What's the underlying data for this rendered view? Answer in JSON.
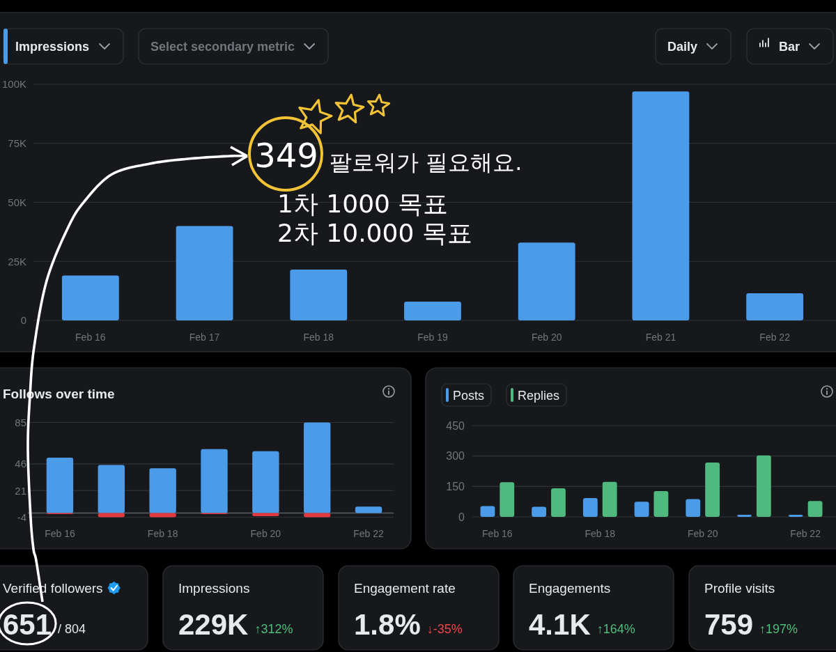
{
  "chart_data": [
    {
      "type": "bar",
      "categories": [
        "Feb 16",
        "Feb 17",
        "Feb 18",
        "Feb 19",
        "Feb 20",
        "Feb 21",
        "Feb 22"
      ],
      "series": [
        {
          "name": "Impressions",
          "color": "#4c9be8",
          "values": [
            19000,
            40000,
            21500,
            8000,
            33000,
            97000,
            11500
          ]
        }
      ],
      "ylim": [
        0,
        100000
      ],
      "yticks": [
        0,
        {
          "value": 25000,
          "label": "25K"
        },
        {
          "value": 50000,
          "label": "50K"
        },
        {
          "value": 75000,
          "label": "75K"
        },
        {
          "value": 100000,
          "label": "100K"
        }
      ],
      "grid": "y",
      "legend": "top left",
      "annotations": [
        "Select secondary metric",
        "Daily",
        "Bar",
        "349",
        "팔로워가 필요해요.",
        "1차 1000 목표",
        "2차 10.000 목표"
      ]
    },
    {
      "type": "bar",
      "title": "Follows over time",
      "categories": [
        "Feb 16",
        null,
        "Feb 18",
        null,
        "Feb 20",
        null,
        "Feb 22"
      ],
      "stacked": true,
      "series": [
        {
          "color": "#4c9be8",
          "values": [
            52,
            45,
            42,
            60,
            58,
            85,
            6
          ]
        },
        {
          "color": "#e0393e",
          "values": [
            -1,
            -4,
            -4,
            -1,
            -3,
            -4,
            null
          ]
        }
      ],
      "ylim": [
        -4,
        85
      ],
      "yticks": [
        -4,
        21,
        46,
        85
      ],
      "grid": "y"
    },
    {
      "type": "bar",
      "categories": [
        "Feb 16",
        null,
        "Feb 18",
        null,
        "Feb 20",
        null,
        "Feb 22"
      ],
      "series": [
        {
          "name": "Posts",
          "color": "#4c9be8",
          "values": [
            53,
            50,
            93,
            75,
            88,
            10,
            10
          ]
        },
        {
          "name": "Replies",
          "color": "#50b97d",
          "values": [
            171,
            141,
            173,
            127,
            268,
            303,
            78
          ]
        }
      ],
      "ylim": [
        0,
        450
      ],
      "yticks": [
        0,
        150,
        300,
        450
      ],
      "grid": "y",
      "legend": "top left"
    },
    {
      "type": "other",
      "title": "Verified followers",
      "annotations": [
        "651",
        "/ 804"
      ],
      "color": "#e7e9ea"
    },
    {
      "type": "other",
      "title": "Impressions",
      "annotations": [
        "229K",
        "↑312%"
      ],
      "color": "#4fbf7c"
    },
    {
      "type": "other",
      "title": "Engagement rate",
      "annotations": [
        "1.8%",
        "↓-35%"
      ],
      "color": "#f0454a"
    },
    {
      "type": "other",
      "title": "Engagements",
      "annotations": [
        "4.1K",
        "↑164%"
      ],
      "color": "#4fbf7c"
    },
    {
      "type": "other",
      "title": "Profile visits",
      "annotations": [
        "759",
        "↑197%"
      ],
      "color": "#4fbf7c"
    }
  ]
}
